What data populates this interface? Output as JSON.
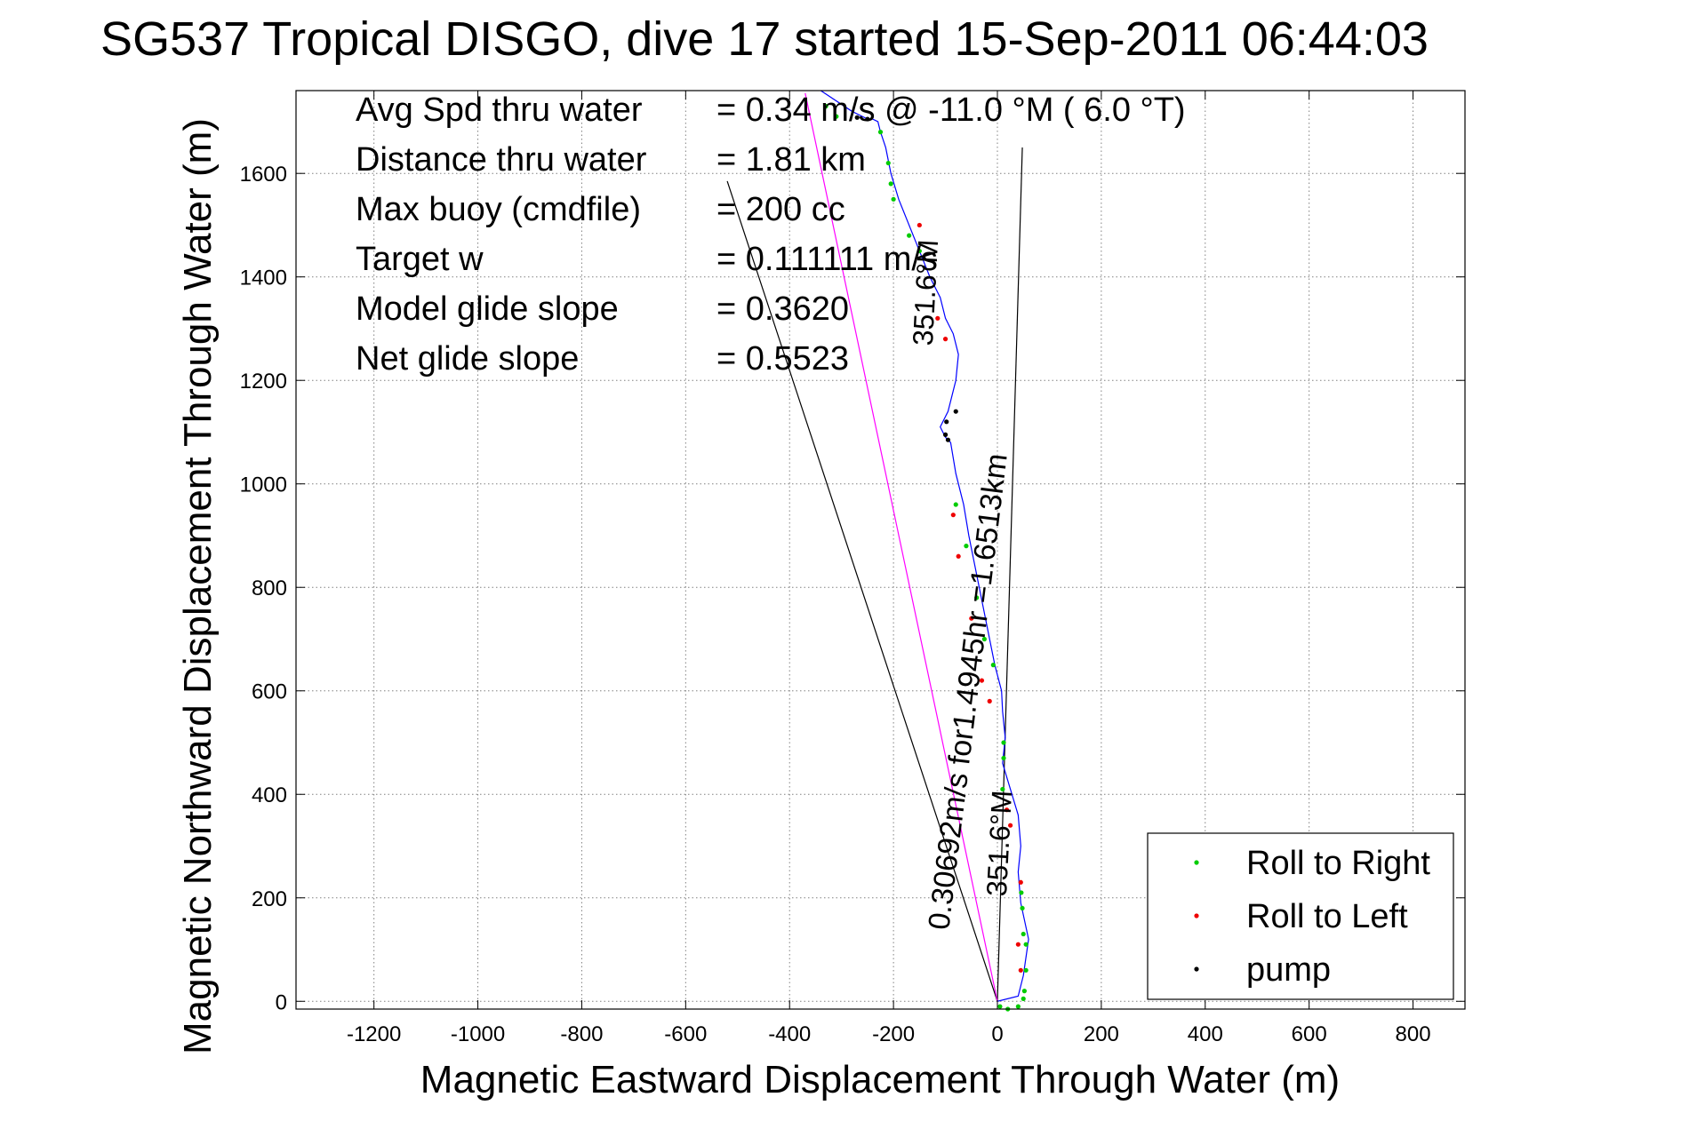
{
  "chart_data": {
    "type": "line",
    "title": "SG537 Tropical DISGO, dive 17 started 15-Sep-2011 06:44:03",
    "xlabel": "Magnetic Eastward Displacement Through Water (m)",
    "ylabel": "Magnetic Northward Displacement Through Water (m)",
    "xlim": [
      -1350,
      900
    ],
    "ylim": [
      -15,
      1760
    ],
    "xticks": [
      -1200,
      -1000,
      -800,
      -600,
      -400,
      -200,
      0,
      200,
      400,
      600,
      800
    ],
    "yticks": [
      0,
      200,
      400,
      600,
      800,
      1000,
      1200,
      1400,
      1600
    ],
    "xtick_labels": [
      "-1200",
      "-1000",
      "-800",
      "-600",
      "-400",
      "-200",
      "0",
      "200",
      "400",
      "600",
      "800"
    ],
    "ytick_labels": [
      "0",
      "200",
      "400",
      "600",
      "800",
      "1000",
      "1200",
      "1400",
      "1600"
    ],
    "grid": true,
    "legend_position": "bottom-right",
    "stats": [
      {
        "label": "Avg Spd thru water",
        "value": "=  0.34 m/s @ -11.0 °M (  6.0 °T)"
      },
      {
        "label": "Distance thru water",
        "value": "=  1.81 km"
      },
      {
        "label": "Max buoy (cmdfile)",
        "value": "= 200 cc"
      },
      {
        "label": "Target w",
        "value": "= 0.111111 m/s"
      },
      {
        "label": "Model glide slope",
        "value": "= 0.3620"
      },
      {
        "label": "Net glide slope",
        "value": "= 0.5523"
      }
    ],
    "annotations": {
      "track_label": "0.30692m/s for1.4945hr =1.6513km",
      "heading_label_low": "351.6°M",
      "heading_label_high": "351.6°M"
    },
    "series": [
      {
        "name": "track",
        "color": "#0000ff",
        "x": [
          0,
          40,
          50,
          60,
          45,
          40,
          45,
          40,
          25,
          10,
          15,
          10,
          8,
          -5,
          -15,
          -25,
          -35,
          -45,
          -55,
          -65,
          -80,
          -90,
          -100,
          -110,
          -95,
          -80,
          -75,
          -85,
          -100,
          -110,
          -130,
          -150,
          -170,
          -190,
          -205,
          -215,
          -225,
          -230,
          -240,
          -250,
          -280,
          -340
        ],
        "y": [
          0,
          10,
          50,
          120,
          190,
          250,
          300,
          360,
          410,
          460,
          510,
          560,
          600,
          650,
          700,
          750,
          800,
          850,
          900,
          960,
          1020,
          1080,
          1090,
          1110,
          1140,
          1200,
          1250,
          1290,
          1320,
          1360,
          1400,
          1450,
          1500,
          1550,
          1600,
          1650,
          1680,
          1700,
          1705,
          1705,
          1720,
          1760
        ]
      },
      {
        "name": "heading line",
        "color": "#ff00ff",
        "x": [
          0,
          -370
        ],
        "y": [
          0,
          1755
        ]
      }
    ],
    "reference_lines": [
      {
        "name": "current line",
        "color": "#000000",
        "x": [
          0,
          -520
        ],
        "y": [
          0,
          1585
        ]
      },
      {
        "name": "heading ray",
        "color": "#000000",
        "x": [
          0,
          48
        ],
        "y": [
          0,
          1650
        ]
      }
    ],
    "markers": {
      "roll_right": {
        "name": "Roll to Right",
        "color": "#00cc00",
        "points": [
          [
            5,
            -10
          ],
          [
            20,
            -15
          ],
          [
            40,
            -10
          ],
          [
            50,
            5
          ],
          [
            52,
            20
          ],
          [
            55,
            60
          ],
          [
            55,
            110
          ],
          [
            50,
            130
          ],
          [
            48,
            180
          ],
          [
            46,
            210
          ],
          [
            10,
            410
          ],
          [
            12,
            470
          ],
          [
            12,
            500
          ],
          [
            -8,
            650
          ],
          [
            -25,
            700
          ],
          [
            -40,
            780
          ],
          [
            -60,
            880
          ],
          [
            -80,
            960
          ],
          [
            -150,
            1450
          ],
          [
            -170,
            1480
          ],
          [
            -200,
            1550
          ],
          [
            -205,
            1580
          ],
          [
            -210,
            1620
          ],
          [
            -225,
            1680
          ],
          [
            -310,
            1710
          ],
          [
            -330,
            1730
          ]
        ]
      },
      "roll_left": {
        "name": "Roll to Left",
        "color": "#ee0000",
        "points": [
          [
            45,
            60
          ],
          [
            40,
            110
          ],
          [
            45,
            230
          ],
          [
            25,
            340
          ],
          [
            18,
            370
          ],
          [
            -15,
            580
          ],
          [
            -30,
            620
          ],
          [
            -50,
            740
          ],
          [
            -75,
            860
          ],
          [
            -85,
            940
          ],
          [
            -100,
            1280
          ],
          [
            -115,
            1320
          ],
          [
            -150,
            1500
          ]
        ]
      },
      "pump": {
        "name": "pump",
        "color": "#000000",
        "points": [
          [
            -95,
            1085
          ],
          [
            -100,
            1095
          ],
          [
            -98,
            1120
          ],
          [
            -80,
            1140
          ],
          [
            -250,
            1705
          ],
          [
            -270,
            1708
          ]
        ]
      }
    },
    "legend": [
      {
        "label": "Roll to Right",
        "color": "#00cc00"
      },
      {
        "label": "Roll to Left",
        "color": "#ee0000"
      },
      {
        "label": "pump",
        "color": "#000000"
      }
    ]
  }
}
